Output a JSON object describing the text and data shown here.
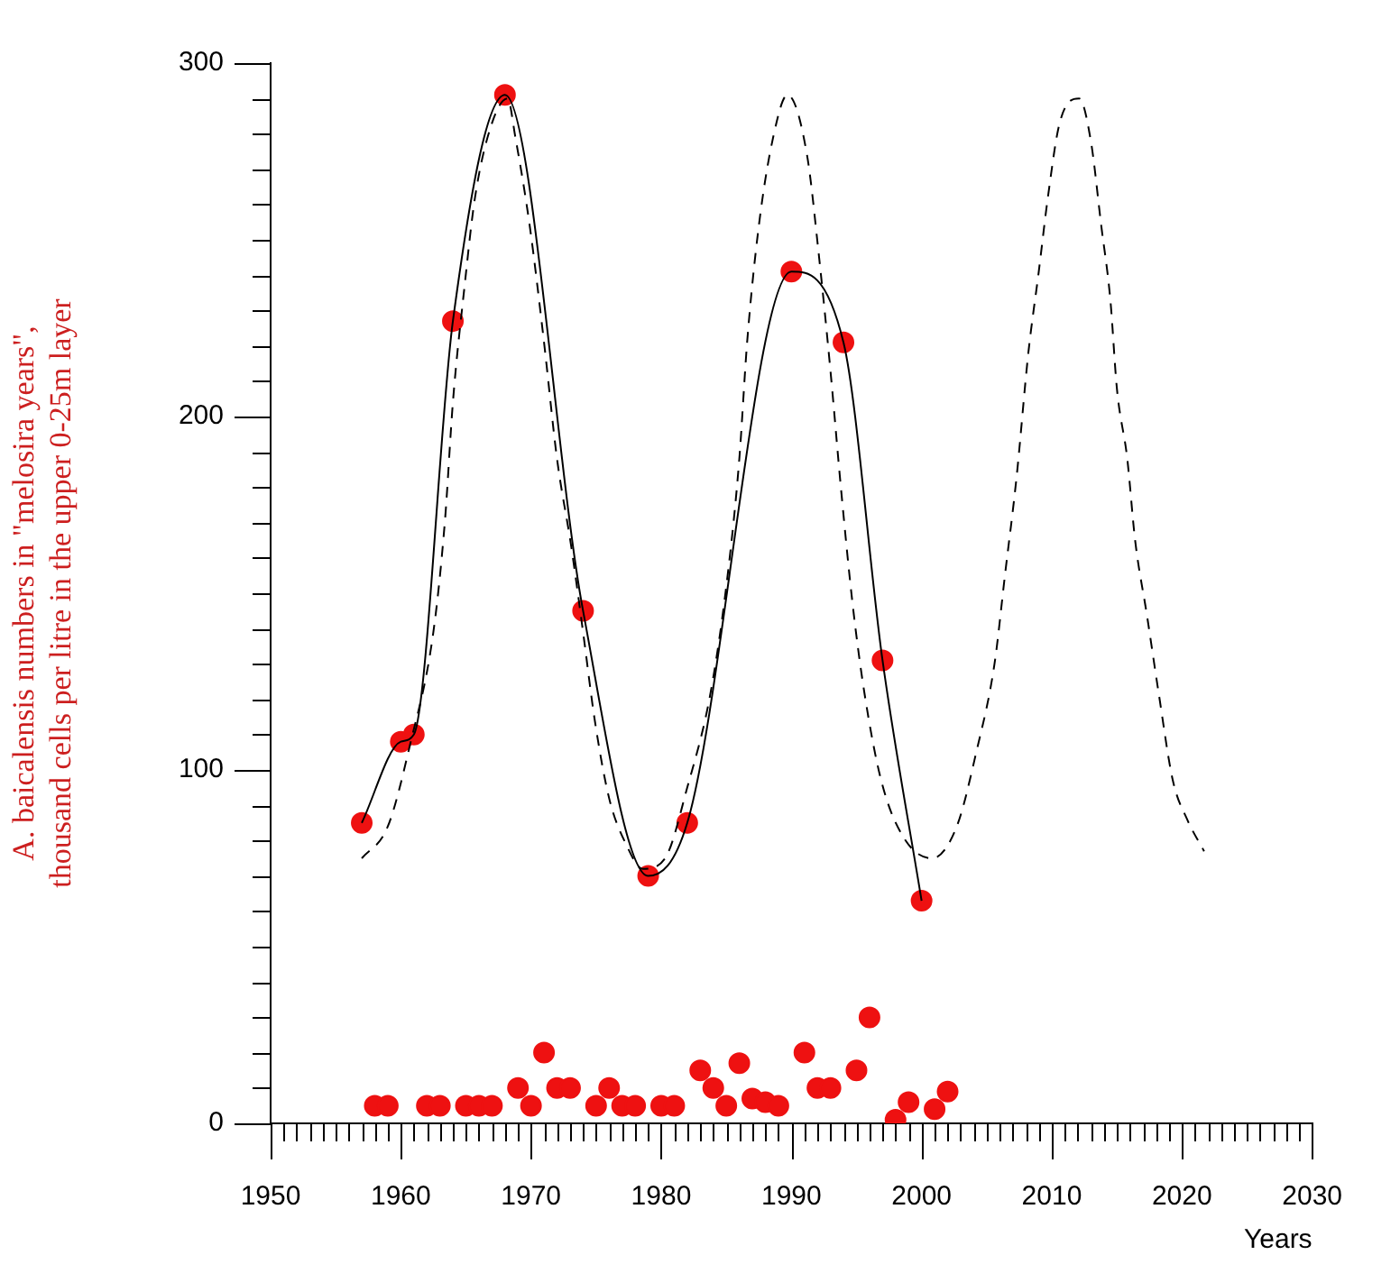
{
  "chart_data": {
    "type": "line",
    "ylabel": [
      "A. baicalensis numbers in \"melosira years\",",
      "thousand cells per litre in the upper 0-25m layer"
    ],
    "xlabel": "Years",
    "xlim": [
      1950,
      2030
    ],
    "xticks": [
      1950,
      {
        "value": 1951,
        "label": null
      },
      {
        "value": 1952,
        "label": null
      },
      {
        "value": 1953,
        "label": null
      },
      {
        "value": 1954,
        "label": null
      },
      {
        "value": 1955,
        "label": null
      },
      {
        "value": 1956,
        "label": null
      },
      {
        "value": 1957,
        "label": null
      },
      {
        "value": 1958,
        "label": null
      },
      {
        "value": 1959,
        "label": null
      },
      1960,
      {
        "value": 1961,
        "label": null
      },
      {
        "value": 1962,
        "label": null
      },
      {
        "value": 1963,
        "label": null
      },
      {
        "value": 1964,
        "label": null
      },
      {
        "value": 1965,
        "label": null
      },
      {
        "value": 1966,
        "label": null
      },
      {
        "value": 1967,
        "label": null
      },
      {
        "value": 1968,
        "label": null
      },
      {
        "value": 1969,
        "label": null
      },
      1970,
      {
        "value": 1971,
        "label": null
      },
      {
        "value": 1972,
        "label": null
      },
      {
        "value": 1973,
        "label": null
      },
      {
        "value": 1974,
        "label": null
      },
      {
        "value": 1975,
        "label": null
      },
      {
        "value": 1976,
        "label": null
      },
      {
        "value": 1977,
        "label": null
      },
      {
        "value": 1978,
        "label": null
      },
      {
        "value": 1979,
        "label": null
      },
      1980,
      {
        "value": 1981,
        "label": null
      },
      {
        "value": 1982,
        "label": null
      },
      {
        "value": 1983,
        "label": null
      },
      {
        "value": 1984,
        "label": null
      },
      {
        "value": 1985,
        "label": null
      },
      {
        "value": 1986,
        "label": null
      },
      {
        "value": 1987,
        "label": null
      },
      {
        "value": 1988,
        "label": null
      },
      {
        "value": 1989,
        "label": null
      },
      1990,
      {
        "value": 1991,
        "label": null
      },
      {
        "value": 1992,
        "label": null
      },
      {
        "value": 1993,
        "label": null
      },
      {
        "value": 1994,
        "label": null
      },
      {
        "value": 1995,
        "label": null
      },
      {
        "value": 1996,
        "label": null
      },
      {
        "value": 1997,
        "label": null
      },
      {
        "value": 1998,
        "label": null
      },
      {
        "value": 1999,
        "label": null
      },
      2000,
      {
        "value": 2001,
        "label": null
      },
      {
        "value": 2002,
        "label": null
      },
      {
        "value": 2003,
        "label": null
      },
      {
        "value": 2004,
        "label": null
      },
      {
        "value": 2005,
        "label": null
      },
      {
        "value": 2006,
        "label": null
      },
      {
        "value": 2007,
        "label": null
      },
      {
        "value": 2008,
        "label": null
      },
      {
        "value": 2009,
        "label": null
      },
      2010,
      {
        "value": 2011,
        "label": null
      },
      {
        "value": 2012,
        "label": null
      },
      {
        "value": 2013,
        "label": null
      },
      {
        "value": 2014,
        "label": null
      },
      {
        "value": 2015,
        "label": null
      },
      {
        "value": 2016,
        "label": null
      },
      {
        "value": 2017,
        "label": null
      },
      {
        "value": 2018,
        "label": null
      },
      {
        "value": 2019,
        "label": null
      },
      2020,
      {
        "value": 2021,
        "label": null
      },
      {
        "value": 2022,
        "label": null
      },
      {
        "value": 2023,
        "label": null
      },
      {
        "value": 2024,
        "label": null
      },
      {
        "value": 2025,
        "label": null
      },
      {
        "value": 2026,
        "label": null
      },
      {
        "value": 2027,
        "label": null
      },
      {
        "value": 2028,
        "label": null
      },
      {
        "value": 2029,
        "label": null
      },
      2030
    ],
    "ylim": [
      0,
      300
    ],
    "yticks": [
      0,
      {
        "value": 10,
        "label": null
      },
      {
        "value": 20,
        "label": null
      },
      {
        "value": 30,
        "label": null
      },
      {
        "value": 40,
        "label": null
      },
      {
        "value": 50,
        "label": null
      },
      {
        "value": 60,
        "label": null
      },
      {
        "value": 70,
        "label": null
      },
      {
        "value": 80,
        "label": null
      },
      {
        "value": 90,
        "label": null
      },
      100,
      {
        "value": 110,
        "label": null
      },
      {
        "value": 120,
        "label": null
      },
      {
        "value": 130,
        "label": null
      },
      {
        "value": 140,
        "label": null
      },
      {
        "value": 150,
        "label": null
      },
      {
        "value": 160,
        "label": null
      },
      {
        "value": 170,
        "label": null
      },
      {
        "value": 180,
        "label": null
      },
      {
        "value": 190,
        "label": null
      },
      200,
      {
        "value": 210,
        "label": null
      },
      {
        "value": 220,
        "label": null
      },
      {
        "value": 230,
        "label": null
      },
      {
        "value": 240,
        "label": null
      },
      {
        "value": 250,
        "label": null
      },
      {
        "value": 260,
        "label": null
      },
      {
        "value": 270,
        "label": null
      },
      {
        "value": 280,
        "label": null
      },
      {
        "value": 290,
        "label": null
      },
      300
    ],
    "series": [
      {
        "type": "line",
        "color": "#000000",
        "marker": "none",
        "line_style": "dashed",
        "x": [
          1957,
          1959,
          1960.7,
          1962.5,
          1963.4,
          1964,
          1964.9,
          1965.7,
          1967,
          1968.2,
          1968.8,
          1969.9,
          1971,
          1972,
          1973.1,
          1974,
          1974.9,
          1976,
          1977.3,
          1978.6,
          1980.3,
          1982,
          1983.8,
          1985.1,
          1986,
          1986.6,
          1987.5,
          1988.6,
          1989.7,
          1991.2,
          1992.1,
          1993,
          1993.8,
          1994.7,
          1995.6,
          1996.9,
          1998.6,
          2000.8,
          2002.7,
          2004.2,
          2005.6,
          2006.4,
          2007.3,
          2008.2,
          2009,
          2009.7,
          2010.6,
          2012.1,
          2013,
          2013.8,
          2014.5,
          2015,
          2015.8,
          2016.4,
          2017.3,
          2018.2,
          2019.3,
          2020.4,
          2021.7
        ],
        "values": [
          75,
          84,
          107,
          139,
          171,
          204,
          237,
          262,
          283,
          290,
          279,
          254,
          221,
          188,
          163,
          139,
          114,
          92,
          79,
          72,
          75,
          95,
          122,
          155,
          188,
          221,
          254,
          279,
          291,
          274,
          246,
          213,
          180,
          147,
          122,
          97,
          81,
          75,
          84,
          105,
          130,
          155,
          183,
          218,
          241,
          262,
          283,
          290,
          278,
          254,
          233,
          208,
          188,
          165,
          144,
          122,
          97,
          86,
          77
        ]
      },
      {
        "type": "line",
        "color": "#000000",
        "marker": "none",
        "line_style": "solid",
        "x": [
          1957,
          1960,
          1961,
          1964,
          1968,
          1974,
          1979,
          1982,
          1990,
          1994,
          1997,
          2000
        ],
        "values": [
          85,
          108,
          110,
          227,
          291,
          145,
          70,
          85,
          241,
          221,
          131,
          63
        ]
      },
      {
        "type": "scatter",
        "color": "#ee1111",
        "marker": "circle",
        "x": [
          1957,
          1960,
          1961,
          1964,
          1968,
          1974,
          1979,
          1982,
          1990,
          1994,
          1997,
          2000
        ],
        "values": [
          85,
          108,
          110,
          227,
          291,
          145,
          70,
          85,
          241,
          221,
          131,
          63
        ]
      },
      {
        "type": "scatter",
        "color": "#ee1111",
        "marker": "circle",
        "x": [
          1958,
          1959,
          1962,
          1963,
          1965,
          1966,
          1967,
          1969,
          1970,
          1971,
          1972,
          1973,
          1975,
          1976,
          1977,
          1978,
          1980,
          1981,
          1983,
          1984,
          1985,
          1986,
          1987,
          1988,
          1989,
          1991,
          1992,
          1993,
          1995,
          1996,
          1998,
          1999,
          2001,
          2002
        ],
        "values": [
          5,
          5,
          5,
          5,
          5,
          5,
          5,
          10,
          5,
          20,
          10,
          10,
          5,
          10,
          5,
          5,
          5,
          5,
          15,
          10,
          5,
          17,
          7,
          6,
          5,
          20,
          10,
          10,
          15,
          30,
          1,
          6,
          4,
          9
        ]
      }
    ]
  }
}
